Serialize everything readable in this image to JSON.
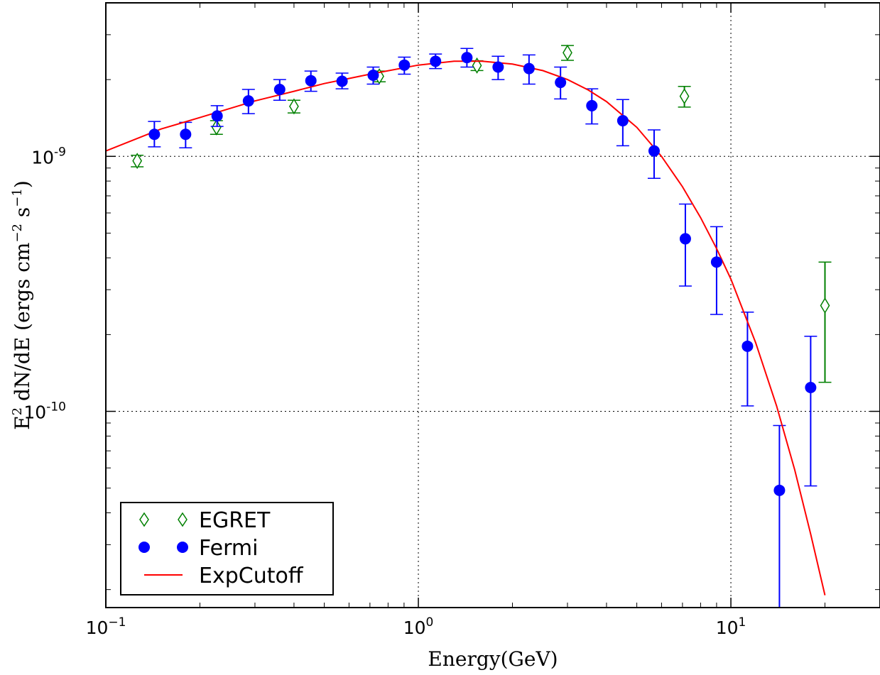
{
  "chart_data": {
    "type": "scatter",
    "title": "",
    "xlabel": "Energy(GeV)",
    "ylabel": {
      "base": "E",
      "exp1": "2",
      "mid": " dN/dE (ergs cm",
      "exp2": "−2",
      "mid2": " s",
      "exp3": "−1",
      "end": ")"
    },
    "xscale": "log",
    "yscale": "log",
    "xlim": [
      0.1,
      30
    ],
    "ylim": [
      1.7e-11,
      4e-09
    ],
    "x_ticks": [
      {
        "value": 0.1,
        "base": "10",
        "exp": "−1"
      },
      {
        "value": 1,
        "base": "10",
        "exp": "0"
      },
      {
        "value": 10,
        "base": "10",
        "exp": "1"
      }
    ],
    "y_ticks": [
      {
        "value": 1e-10,
        "base": "10",
        "exp": "-10"
      },
      {
        "value": 1e-09,
        "base": "10",
        "exp": "-9"
      }
    ],
    "grid": true,
    "legend_position": "lower-left",
    "series": [
      {
        "name": "EGRET",
        "marker": "diamond-open",
        "color": "#008000",
        "points": [
          {
            "x": 0.126,
            "y": 9.6e-10,
            "lo": 9.1e-10,
            "hi": 1.01e-09
          },
          {
            "x": 0.226,
            "y": 1.3e-09,
            "lo": 1.22e-09,
            "hi": 1.38e-09
          },
          {
            "x": 0.4,
            "y": 1.57e-09,
            "lo": 1.48e-09,
            "hi": 1.66e-09
          },
          {
            "x": 0.75,
            "y": 2.06e-09,
            "lo": 1.96e-09,
            "hi": 2.16e-09
          },
          {
            "x": 1.54,
            "y": 2.27e-09,
            "lo": 2.17e-09,
            "hi": 2.37e-09
          },
          {
            "x": 3.0,
            "y": 2.55e-09,
            "lo": 2.38e-09,
            "hi": 2.72e-09
          },
          {
            "x": 7.1,
            "y": 1.72e-09,
            "lo": 1.56e-09,
            "hi": 1.88e-09
          },
          {
            "x": 20.0,
            "y": 2.6e-10,
            "lo": 1.3e-10,
            "hi": 3.85e-10
          }
        ]
      },
      {
        "name": "Fermi",
        "marker": "circle-filled",
        "color": "#0000ff",
        "points": [
          {
            "x": 0.143,
            "y": 1.22e-09,
            "lo": 1.09e-09,
            "hi": 1.37e-09
          },
          {
            "x": 0.18,
            "y": 1.22e-09,
            "lo": 1.08e-09,
            "hi": 1.36e-09
          },
          {
            "x": 0.227,
            "y": 1.44e-09,
            "lo": 1.31e-09,
            "hi": 1.58e-09
          },
          {
            "x": 0.286,
            "y": 1.65e-09,
            "lo": 1.47e-09,
            "hi": 1.83e-09
          },
          {
            "x": 0.36,
            "y": 1.83e-09,
            "lo": 1.66e-09,
            "hi": 2e-09
          },
          {
            "x": 0.453,
            "y": 1.98e-09,
            "lo": 1.8e-09,
            "hi": 2.16e-09
          },
          {
            "x": 0.57,
            "y": 1.97e-09,
            "lo": 1.84e-09,
            "hi": 2.12e-09
          },
          {
            "x": 0.717,
            "y": 2.08e-09,
            "lo": 1.92e-09,
            "hi": 2.24e-09
          },
          {
            "x": 0.902,
            "y": 2.28e-09,
            "lo": 2.1e-09,
            "hi": 2.45e-09
          },
          {
            "x": 1.135,
            "y": 2.36e-09,
            "lo": 2.21e-09,
            "hi": 2.52e-09
          },
          {
            "x": 1.43,
            "y": 2.44e-09,
            "lo": 2.24e-09,
            "hi": 2.65e-09
          },
          {
            "x": 1.8,
            "y": 2.24e-09,
            "lo": 2e-09,
            "hi": 2.47e-09
          },
          {
            "x": 2.26,
            "y": 2.21e-09,
            "lo": 1.92e-09,
            "hi": 2.5e-09
          },
          {
            "x": 2.85,
            "y": 1.95e-09,
            "lo": 1.68e-09,
            "hi": 2.24e-09
          },
          {
            "x": 3.59,
            "y": 1.58e-09,
            "lo": 1.34e-09,
            "hi": 1.84e-09
          },
          {
            "x": 4.51,
            "y": 1.38e-09,
            "lo": 1.1e-09,
            "hi": 1.67e-09
          },
          {
            "x": 5.68,
            "y": 1.05e-09,
            "lo": 8.2e-10,
            "hi": 1.27e-09
          },
          {
            "x": 7.15,
            "y": 4.75e-10,
            "lo": 3.1e-10,
            "hi": 6.5e-10
          },
          {
            "x": 9.0,
            "y": 3.85e-10,
            "lo": 2.4e-10,
            "hi": 5.3e-10
          },
          {
            "x": 11.3,
            "y": 1.8e-10,
            "lo": 1.05e-10,
            "hi": 2.45e-10
          },
          {
            "x": 14.3,
            "y": 4.9e-11,
            "lo": 1.7e-11,
            "hi": 8.8e-11
          },
          {
            "x": 18.0,
            "y": 1.24e-10,
            "lo": 5.1e-11,
            "hi": 1.97e-10
          }
        ]
      },
      {
        "name": "ExpCutoff",
        "type": "line",
        "color": "#ff0000",
        "points": [
          {
            "x": 0.1,
            "y": 1.05e-09
          },
          {
            "x": 0.15,
            "y": 1.28e-09
          },
          {
            "x": 0.2,
            "y": 1.42e-09
          },
          {
            "x": 0.3,
            "y": 1.65e-09
          },
          {
            "x": 0.4,
            "y": 1.8e-09
          },
          {
            "x": 0.5,
            "y": 1.93e-09
          },
          {
            "x": 0.7,
            "y": 2.1e-09
          },
          {
            "x": 1.0,
            "y": 2.28e-09
          },
          {
            "x": 1.3,
            "y": 2.36e-09
          },
          {
            "x": 1.6,
            "y": 2.36e-09
          },
          {
            "x": 2.0,
            "y": 2.3e-09
          },
          {
            "x": 2.5,
            "y": 2.17e-09
          },
          {
            "x": 3.0,
            "y": 2e-09
          },
          {
            "x": 3.5,
            "y": 1.82e-09
          },
          {
            "x": 4.0,
            "y": 1.64e-09
          },
          {
            "x": 5.0,
            "y": 1.3e-09
          },
          {
            "x": 6.0,
            "y": 1e-09
          },
          {
            "x": 7.0,
            "y": 7.6e-10
          },
          {
            "x": 8.0,
            "y": 5.75e-10
          },
          {
            "x": 9.0,
            "y": 4.35e-10
          },
          {
            "x": 10.0,
            "y": 3.3e-10
          },
          {
            "x": 12.0,
            "y": 1.86e-10
          },
          {
            "x": 14.0,
            "y": 1.05e-10
          },
          {
            "x": 16.0,
            "y": 5.9e-11
          },
          {
            "x": 18.0,
            "y": 3.3e-11
          },
          {
            "x": 20.0,
            "y": 1.9e-11
          }
        ]
      }
    ]
  }
}
